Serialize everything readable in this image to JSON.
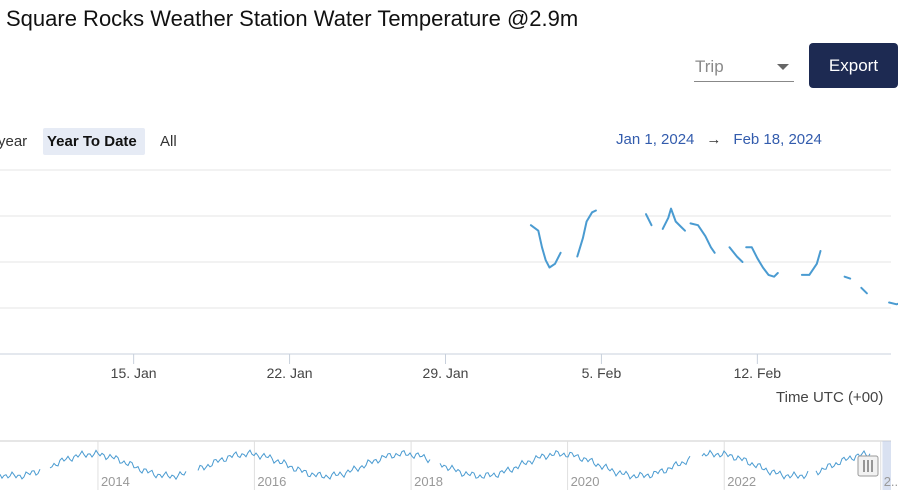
{
  "header": {
    "title": "Square Rocks Weather Station Water Temperature @2.9m"
  },
  "controls": {
    "trip_select": {
      "value": "Trip"
    },
    "export_label": "Export"
  },
  "range_selector": {
    "buttons": [
      {
        "label": "year",
        "active": false
      },
      {
        "label": "Year To Date",
        "active": true
      },
      {
        "label": "All",
        "active": false
      }
    ],
    "from": "Jan 1, 2024",
    "arrow": "→",
    "to": "Feb 18, 2024"
  },
  "chart_data": {
    "type": "line",
    "title": "Square Rocks Weather Station Water Temperature @2.9m",
    "xlabel": "Time UTC (+00)",
    "ylabel": "",
    "x_range": [
      "2024-01-09",
      "2024-02-18"
    ],
    "x_tick_labels": [
      "15. Jan",
      "22. Jan",
      "29. Jan",
      "5. Feb",
      "12. Feb"
    ],
    "y_tick_labels": [],
    "y_gridlines": 5,
    "grid": true,
    "legend": "none",
    "series_color": "#4a9bd1",
    "segments": [
      [
        [
          "2024-02-01T20:00",
          0.7
        ],
        [
          "2024-02-02T04:00",
          0.67
        ],
        [
          "2024-02-02T08:00",
          0.58
        ],
        [
          "2024-02-02T12:00",
          0.51
        ],
        [
          "2024-02-02T16:00",
          0.47
        ],
        [
          "2024-02-02T22:00",
          0.49
        ],
        [
          "2024-02-03T04:00",
          0.55
        ]
      ],
      [
        [
          "2024-02-03T22:00",
          0.53
        ],
        [
          "2024-02-04T04:00",
          0.63
        ],
        [
          "2024-02-04T08:00",
          0.72
        ],
        [
          "2024-02-04T14:00",
          0.77
        ],
        [
          "2024-02-04T18:00",
          0.78
        ]
      ],
      [
        [
          "2024-02-07T00:00",
          0.76
        ],
        [
          "2024-02-07T06:00",
          0.7
        ]
      ],
      [
        [
          "2024-02-07T18:00",
          0.68
        ],
        [
          "2024-02-08T00:00",
          0.74
        ],
        [
          "2024-02-08T03:00",
          0.79
        ],
        [
          "2024-02-08T08:00",
          0.72
        ],
        [
          "2024-02-08T14:00",
          0.69
        ],
        [
          "2024-02-08T18:00",
          0.67
        ]
      ],
      [
        [
          "2024-02-09T00:00",
          0.71
        ],
        [
          "2024-02-09T08:00",
          0.7
        ],
        [
          "2024-02-09T16:00",
          0.64
        ],
        [
          "2024-02-09T22:00",
          0.58
        ],
        [
          "2024-02-10T02:00",
          0.55
        ]
      ],
      [
        [
          "2024-02-10T18:00",
          0.58
        ],
        [
          "2024-02-11T02:00",
          0.53
        ],
        [
          "2024-02-11T08:00",
          0.5
        ]
      ],
      [
        [
          "2024-02-11T12:00",
          0.58
        ],
        [
          "2024-02-11T18:00",
          0.58
        ],
        [
          "2024-02-12T00:00",
          0.52
        ],
        [
          "2024-02-12T06:00",
          0.47
        ],
        [
          "2024-02-12T12:00",
          0.43
        ],
        [
          "2024-02-12T18:00",
          0.42
        ],
        [
          "2024-02-12T22:00",
          0.44
        ]
      ],
      [
        [
          "2024-02-14T00:00",
          0.43
        ],
        [
          "2024-02-14T08:00",
          0.43
        ],
        [
          "2024-02-14T16:00",
          0.49
        ],
        [
          "2024-02-14T20:00",
          0.56
        ]
      ],
      [
        [
          "2024-02-15T22:00",
          0.42
        ],
        [
          "2024-02-16T04:00",
          0.41
        ]
      ],
      [
        [
          "2024-02-16T16:00",
          0.36
        ],
        [
          "2024-02-16T22:00",
          0.33
        ]
      ],
      [
        [
          "2024-02-17T22:00",
          0.28
        ],
        [
          "2024-02-18T06:00",
          0.27
        ],
        [
          "2024-02-18T12:00",
          0.28
        ]
      ],
      [
        [
          "2024-02-18T20:00",
          0.39
        ],
        [
          "2024-02-19T04:00",
          0.4
        ]
      ]
    ]
  },
  "navigator": {
    "year_labels": [
      "2014",
      "2016",
      "2018",
      "2020",
      "2022",
      "2..."
    ],
    "x_range": [
      "2012-10-01",
      "2024-02-18"
    ],
    "selection": [
      "2024-01-09",
      "2024-02-18"
    ]
  }
}
